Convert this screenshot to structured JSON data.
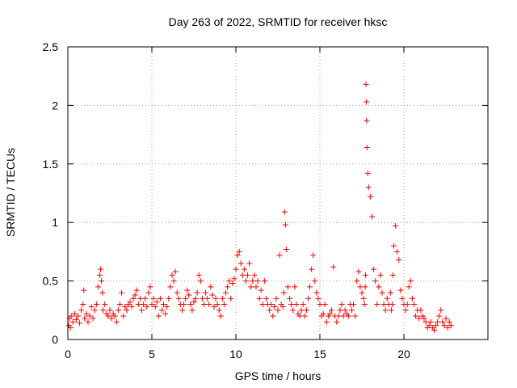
{
  "colors": {
    "marker": "#ff0000",
    "grid": "#a0a0a0",
    "axis": "#000000"
  },
  "chart_data": {
    "type": "scatter",
    "title": "Day 263 of 2022, SRMTID for receiver hksc",
    "xlabel": "GPS time / hours",
    "ylabel": "SRMTID / TECUs",
    "xlim": [
      0,
      25
    ],
    "ylim": [
      0,
      2.5
    ],
    "grid": true,
    "marker": "+",
    "x_ticks": [
      0,
      5,
      10,
      15,
      20
    ],
    "x_tick_labels": [
      "0",
      "5",
      "10",
      "15",
      "20"
    ],
    "y_ticks": [
      0,
      0.5,
      1,
      1.5,
      2,
      2.5
    ],
    "y_tick_labels": [
      "0",
      "0.5",
      "1",
      "1.5",
      "2",
      "2.5"
    ],
    "series": [
      {
        "name": "SRMTID",
        "x": [
          0.05,
          0.1,
          0.15,
          0.2,
          0.3,
          0.4,
          0.5,
          0.6,
          0.7,
          0.8,
          0.9,
          0.95,
          1.0,
          1.1,
          1.2,
          1.3,
          1.4,
          1.5,
          1.6,
          1.7,
          1.8,
          1.9,
          1.95,
          2.0,
          2.05,
          2.1,
          2.2,
          2.3,
          2.4,
          2.5,
          2.6,
          2.7,
          2.8,
          2.9,
          3.0,
          3.1,
          3.2,
          3.3,
          3.4,
          3.5,
          3.6,
          3.7,
          3.8,
          3.9,
          4.0,
          4.1,
          4.2,
          4.3,
          4.4,
          4.5,
          4.6,
          4.7,
          4.8,
          4.9,
          5.0,
          5.1,
          5.2,
          5.3,
          5.4,
          5.5,
          5.6,
          5.7,
          5.8,
          5.9,
          6.0,
          6.1,
          6.2,
          6.3,
          6.4,
          6.5,
          6.6,
          6.7,
          6.8,
          6.9,
          7.0,
          7.1,
          7.2,
          7.3,
          7.4,
          7.5,
          7.6,
          7.7,
          7.8,
          7.9,
          8.0,
          8.1,
          8.2,
          8.3,
          8.4,
          8.5,
          8.6,
          8.7,
          8.8,
          8.9,
          9.0,
          9.1,
          9.2,
          9.3,
          9.4,
          9.5,
          9.6,
          9.7,
          9.8,
          9.9,
          10.0,
          10.1,
          10.2,
          10.3,
          10.4,
          10.5,
          10.6,
          10.7,
          10.8,
          10.9,
          11.0,
          11.1,
          11.2,
          11.3,
          11.4,
          11.5,
          11.6,
          11.7,
          11.8,
          11.9,
          12.0,
          12.1,
          12.2,
          12.3,
          12.4,
          12.5,
          12.6,
          12.7,
          12.8,
          12.85,
          12.9,
          12.95,
          13.0,
          13.1,
          13.2,
          13.3,
          13.4,
          13.5,
          13.6,
          13.7,
          13.8,
          13.9,
          14.0,
          14.1,
          14.2,
          14.3,
          14.4,
          14.5,
          14.6,
          14.7,
          14.8,
          14.9,
          15.0,
          15.1,
          15.2,
          15.3,
          15.4,
          15.5,
          15.6,
          15.7,
          15.8,
          15.9,
          16.0,
          16.1,
          16.2,
          16.3,
          16.4,
          16.5,
          16.6,
          16.7,
          16.8,
          16.9,
          17.0,
          17.1,
          17.2,
          17.3,
          17.4,
          17.5,
          17.6,
          17.65,
          17.7,
          17.72,
          17.74,
          17.76,
          17.78,
          17.8,
          17.85,
          17.9,
          18.0,
          18.1,
          18.2,
          18.3,
          18.4,
          18.5,
          18.6,
          18.7,
          18.8,
          18.9,
          19.0,
          19.1,
          19.2,
          19.25,
          19.3,
          19.35,
          19.4,
          19.5,
          19.6,
          19.7,
          19.8,
          19.9,
          20.0,
          20.1,
          20.2,
          20.3,
          20.4,
          20.5,
          20.6,
          20.7,
          20.8,
          20.9,
          21.0,
          21.1,
          21.2,
          21.3,
          21.4,
          21.5,
          21.6,
          21.7,
          21.8,
          21.9,
          22.0,
          22.1,
          22.2,
          22.3,
          22.4,
          22.5,
          22.6,
          22.7,
          22.8
        ],
        "y": [
          0.12,
          0.18,
          0.1,
          0.2,
          0.15,
          0.22,
          0.17,
          0.2,
          0.14,
          0.25,
          0.3,
          0.42,
          0.18,
          0.22,
          0.15,
          0.2,
          0.28,
          0.18,
          0.25,
          0.3,
          0.45,
          0.55,
          0.6,
          0.5,
          0.4,
          0.25,
          0.3,
          0.22,
          0.2,
          0.25,
          0.18,
          0.22,
          0.2,
          0.15,
          0.25,
          0.3,
          0.4,
          0.2,
          0.28,
          0.25,
          0.3,
          0.32,
          0.28,
          0.35,
          0.38,
          0.42,
          0.3,
          0.35,
          0.25,
          0.3,
          0.35,
          0.28,
          0.4,
          0.45,
          0.3,
          0.35,
          0.28,
          0.32,
          0.2,
          0.35,
          0.25,
          0.3,
          0.22,
          0.28,
          0.35,
          0.45,
          0.55,
          0.5,
          0.58,
          0.4,
          0.35,
          0.3,
          0.25,
          0.3,
          0.35,
          0.42,
          0.38,
          0.3,
          0.25,
          0.32,
          0.35,
          0.4,
          0.55,
          0.5,
          0.35,
          0.3,
          0.4,
          0.35,
          0.3,
          0.45,
          0.38,
          0.28,
          0.35,
          0.3,
          0.25,
          0.2,
          0.35,
          0.3,
          0.4,
          0.45,
          0.5,
          0.35,
          0.48,
          0.52,
          0.6,
          0.72,
          0.75,
          0.65,
          0.55,
          0.6,
          0.5,
          0.55,
          0.65,
          0.45,
          0.5,
          0.55,
          0.45,
          0.5,
          0.35,
          0.42,
          0.3,
          0.5,
          0.35,
          0.3,
          0.25,
          0.3,
          0.2,
          0.28,
          0.35,
          0.25,
          0.72,
          0.3,
          0.28,
          0.4,
          1.09,
          0.98,
          0.77,
          0.45,
          0.35,
          0.3,
          0.25,
          0.45,
          0.3,
          0.22,
          0.2,
          0.25,
          0.3,
          0.2,
          0.25,
          0.35,
          0.45,
          0.6,
          0.72,
          0.5,
          0.4,
          0.35,
          0.3,
          0.2,
          0.22,
          0.3,
          0.15,
          0.2,
          0.22,
          0.25,
          0.62,
          0.2,
          0.15,
          0.2,
          0.25,
          0.3,
          0.2,
          0.25,
          0.22,
          0.2,
          0.3,
          0.25,
          0.3,
          0.2,
          0.5,
          0.58,
          0.45,
          0.4,
          0.35,
          0.3,
          0.45,
          0.55,
          2.18,
          2.03,
          1.87,
          1.64,
          1.42,
          1.3,
          1.22,
          1.05,
          0.6,
          0.5,
          0.3,
          0.45,
          0.55,
          0.4,
          0.3,
          0.25,
          0.35,
          0.3,
          0.4,
          0.25,
          0.3,
          0.55,
          0.8,
          0.97,
          0.75,
          0.68,
          0.42,
          0.35,
          0.3,
          0.25,
          0.3,
          0.45,
          0.5,
          0.35,
          0.3,
          0.2,
          0.25,
          0.18,
          0.25,
          0.2,
          0.18,
          0.15,
          0.1,
          0.12,
          0.15,
          0.1,
          0.08,
          0.12,
          0.15,
          0.2,
          0.25,
          0.15,
          0.12,
          0.18,
          0.1,
          0.15,
          0.12
        ]
      }
    ]
  }
}
